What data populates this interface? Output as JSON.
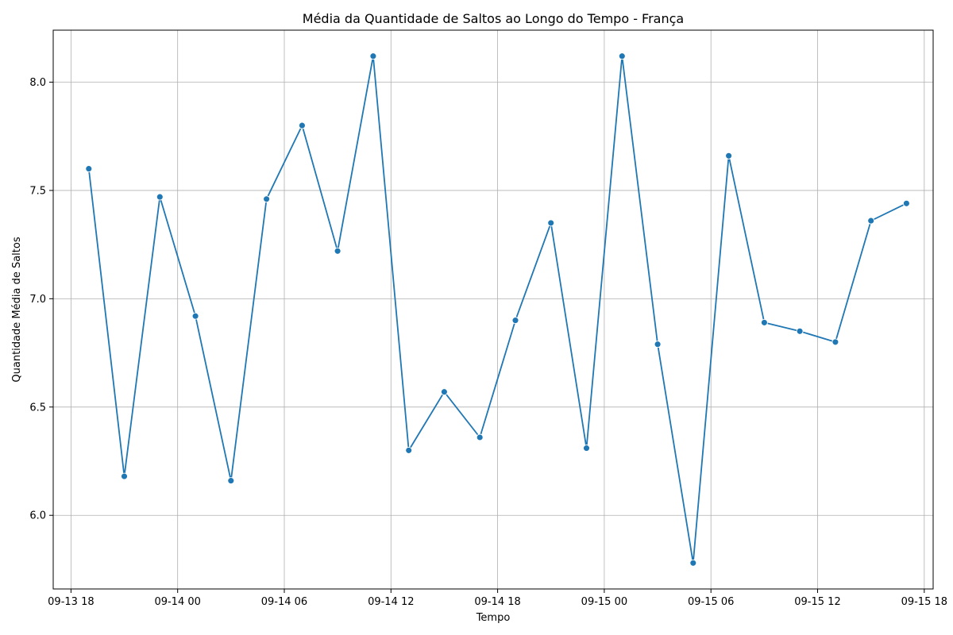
{
  "chart_data": {
    "type": "line",
    "title": "Média da Quantidade de Saltos ao Longo do Tempo - França",
    "xlabel": "Tempo",
    "ylabel": "Quantidade Média de Saltos",
    "x_ticks": [
      "09-13 18",
      "09-14 00",
      "09-14 06",
      "09-14 12",
      "09-14 18",
      "09-15 00",
      "09-15 06",
      "09-15 12",
      "09-15 18"
    ],
    "y_ticks": [
      "6.0",
      "6.5",
      "7.0",
      "7.5",
      "8.0"
    ],
    "xlim": [
      "2024-09-13T17:00",
      "2024-09-15T18:30"
    ],
    "ylim": [
      5.66,
      8.24
    ],
    "grid": true,
    "series": [
      {
        "color": "#1f77b4",
        "marker": "circle",
        "x": [
          "2024-09-13T19:00",
          "2024-09-13T21:00",
          "2024-09-13T23:00",
          "2024-09-14T01:00",
          "2024-09-14T03:00",
          "2024-09-14T05:00",
          "2024-09-14T07:00",
          "2024-09-14T09:00",
          "2024-09-14T11:00",
          "2024-09-14T13:00",
          "2024-09-14T15:00",
          "2024-09-14T17:00",
          "2024-09-14T19:00",
          "2024-09-14T21:00",
          "2024-09-14T23:00",
          "2024-09-15T01:00",
          "2024-09-15T03:00",
          "2024-09-15T05:00",
          "2024-09-15T07:00",
          "2024-09-15T09:00",
          "2024-09-15T11:00",
          "2024-09-15T13:00",
          "2024-09-15T15:00",
          "2024-09-15T17:00"
        ],
        "y": [
          7.6,
          6.18,
          7.47,
          6.92,
          6.16,
          7.46,
          7.8,
          7.22,
          8.12,
          6.3,
          6.57,
          6.36,
          6.9,
          7.35,
          6.31,
          8.12,
          6.79,
          5.78,
          7.66,
          6.89,
          6.85,
          6.8,
          7.36,
          7.44
        ]
      }
    ]
  }
}
